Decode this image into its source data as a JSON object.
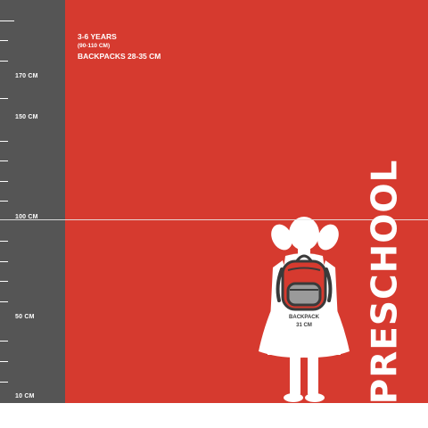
{
  "ruler": {
    "labels": {
      "cm170": "170 CM",
      "cm150": "150 CM",
      "cm100": "100 CM",
      "cm50": "50 CM",
      "cm10": "10 CM"
    }
  },
  "info": {
    "age": "3-6 YEARS",
    "height_range": "(90-110 CM)",
    "backpacks": "BACKPACKS 28-35 CM"
  },
  "figure": {
    "backpack_label": "BACKPACK",
    "backpack_size": "31 CM"
  },
  "category": "PRESCHOOL",
  "colors": {
    "panel": "#d63a2f",
    "ruler": "#555555",
    "text": "#ffffff",
    "backpack_body": "#d63a2f",
    "backpack_pocket": "#9a9a9a",
    "backpack_outline": "#3a3a3a"
  }
}
